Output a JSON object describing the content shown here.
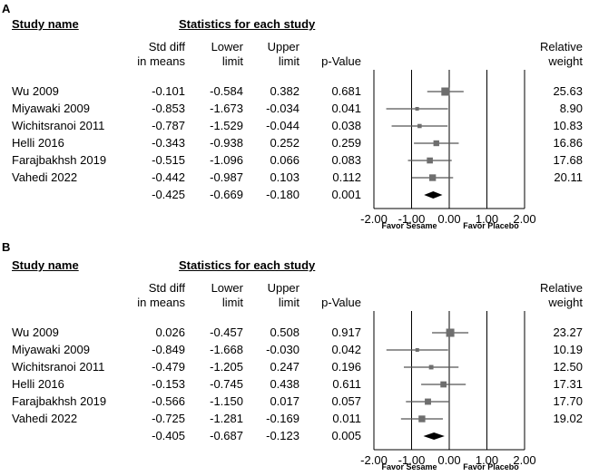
{
  "headers": {
    "study_name": "Study name",
    "stats_title": "Statistics for each study",
    "col_std_diff": [
      "Std diff",
      "in means"
    ],
    "col_lower": [
      "Lower",
      "limit"
    ],
    "col_upper": [
      "Upper",
      "limit"
    ],
    "col_p": "p-Value",
    "col_weight": [
      "Relative",
      "weight"
    ]
  },
  "favor_left": "Favor Sesame",
  "favor_right": "Favor Placebo",
  "chart_data": [
    {
      "type": "forest",
      "panel_label": "A",
      "xlim": [
        -2.0,
        2.0
      ],
      "xticks": [
        "-2.00",
        "-1.00",
        "0.00",
        "1.00",
        "2.00"
      ],
      "studies": [
        {
          "name": "Wu 2009",
          "smd": "-0.101",
          "lower": "-0.584",
          "upper": "0.382",
          "p": "0.681",
          "weight": "25.63"
        },
        {
          "name": "Miyawaki 2009",
          "smd": "-0.853",
          "lower": "-1.673",
          "upper": "-0.034",
          "p": "0.041",
          "weight": "8.90"
        },
        {
          "name": "Wichitsranoi 2011",
          "smd": "-0.787",
          "lower": "-1.529",
          "upper": "-0.044",
          "p": "0.038",
          "weight": "10.83"
        },
        {
          "name": "Helli 2016",
          "smd": "-0.343",
          "lower": "-0.938",
          "upper": "0.252",
          "p": "0.259",
          "weight": "16.86"
        },
        {
          "name": "Farajbakhsh 2019",
          "smd": "-0.515",
          "lower": "-1.096",
          "upper": "0.066",
          "p": "0.083",
          "weight": "17.68"
        },
        {
          "name": "Vahedi 2022",
          "smd": "-0.442",
          "lower": "-0.987",
          "upper": "0.103",
          "p": "0.112",
          "weight": "20.11"
        }
      ],
      "pooled": {
        "smd": "-0.425",
        "lower": "-0.669",
        "upper": "-0.180",
        "p": "0.001"
      }
    },
    {
      "type": "forest",
      "panel_label": "B",
      "xlim": [
        -2.0,
        2.0
      ],
      "xticks": [
        "-2.00",
        "-1.00",
        "0.00",
        "1.00",
        "2.00"
      ],
      "studies": [
        {
          "name": "Wu 2009",
          "smd": "0.026",
          "lower": "-0.457",
          "upper": "0.508",
          "p": "0.917",
          "weight": "23.27"
        },
        {
          "name": "Miyawaki 2009",
          "smd": "-0.849",
          "lower": "-1.668",
          "upper": "-0.030",
          "p": "0.042",
          "weight": "10.19"
        },
        {
          "name": "Wichitsranoi 2011",
          "smd": "-0.479",
          "lower": "-1.205",
          "upper": "0.247",
          "p": "0.196",
          "weight": "12.50"
        },
        {
          "name": "Helli 2016",
          "smd": "-0.153",
          "lower": "-0.745",
          "upper": "0.438",
          "p": "0.611",
          "weight": "17.31"
        },
        {
          "name": "Farajbakhsh 2019",
          "smd": "-0.566",
          "lower": "-1.150",
          "upper": "0.017",
          "p": "0.057",
          "weight": "17.70"
        },
        {
          "name": "Vahedi 2022",
          "smd": "-0.725",
          "lower": "-1.281",
          "upper": "-0.169",
          "p": "0.011",
          "weight": "19.02"
        }
      ],
      "pooled": {
        "smd": "-0.405",
        "lower": "-0.687",
        "upper": "-0.123",
        "p": "0.005"
      }
    }
  ]
}
